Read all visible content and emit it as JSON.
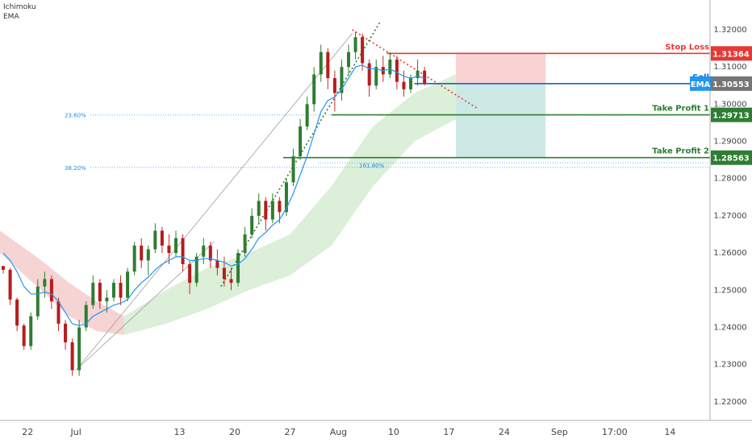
{
  "indicators": [
    "Ichimoku",
    "EMA"
  ],
  "chart_data": {
    "type": "candlestick",
    "title": "",
    "ylim": [
      1.215,
      1.328
    ],
    "y_ticks": [
      "1.32000",
      "1.31000",
      "1.30000",
      "1.29000",
      "1.28000",
      "1.27000",
      "1.26000",
      "1.25000",
      "1.24000",
      "1.23000",
      "1.22000"
    ],
    "y_tick_values": [
      1.32,
      1.31,
      1.3,
      1.29,
      1.28,
      1.27,
      1.26,
      1.25,
      1.24,
      1.23,
      1.22
    ],
    "x_ticks": [
      {
        "label": "22",
        "index": 4
      },
      {
        "label": "Jul",
        "index": 11
      },
      {
        "label": "13",
        "index": 26
      },
      {
        "label": "20",
        "index": 34
      },
      {
        "label": "27",
        "index": 42
      },
      {
        "label": "Aug",
        "index": 49
      },
      {
        "label": "10",
        "index": 57
      },
      {
        "label": "17",
        "index": 65
      },
      {
        "label": "24",
        "index": 73
      },
      {
        "label": "Sep",
        "index": 81
      },
      {
        "label": "17:00",
        "index": 89
      },
      {
        "label": "14",
        "index": 97
      }
    ],
    "candles": [
      [
        1.2565,
        1.2565,
        1.2545,
        1.2555
      ],
      [
        1.2555,
        1.256,
        1.246,
        1.2475
      ],
      [
        1.2475,
        1.248,
        1.239,
        1.2405
      ],
      [
        1.2405,
        1.241,
        1.234,
        1.235
      ],
      [
        1.235,
        1.244,
        1.234,
        1.243
      ],
      [
        1.243,
        1.253,
        1.242,
        1.251
      ],
      [
        1.251,
        1.255,
        1.248,
        1.253
      ],
      [
        1.253,
        1.254,
        1.245,
        1.247
      ],
      [
        1.247,
        1.248,
        1.239,
        1.241
      ],
      [
        1.241,
        1.242,
        1.234,
        1.236
      ],
      [
        1.236,
        1.237,
        1.227,
        1.2285
      ],
      [
        1.2285,
        1.242,
        1.227,
        1.24
      ],
      [
        1.24,
        1.247,
        1.239,
        1.246
      ],
      [
        1.246,
        1.254,
        1.245,
        1.252
      ],
      [
        1.252,
        1.253,
        1.245,
        1.247
      ],
      [
        1.247,
        1.25,
        1.244,
        1.248
      ],
      [
        1.248,
        1.253,
        1.247,
        1.252
      ],
      [
        1.252,
        1.254,
        1.246,
        1.248
      ],
      [
        1.248,
        1.256,
        1.247,
        1.255
      ],
      [
        1.255,
        1.263,
        1.254,
        1.262
      ],
      [
        1.262,
        1.264,
        1.256,
        1.258
      ],
      [
        1.258,
        1.262,
        1.254,
        1.261
      ],
      [
        1.261,
        1.268,
        1.26,
        1.266
      ],
      [
        1.266,
        1.267,
        1.26,
        1.262
      ],
      [
        1.262,
        1.265,
        1.257,
        1.26
      ],
      [
        1.26,
        1.266,
        1.259,
        1.264
      ],
      [
        1.264,
        1.265,
        1.255,
        1.257
      ],
      [
        1.257,
        1.258,
        1.249,
        1.252
      ],
      [
        1.252,
        1.26,
        1.251,
        1.259
      ],
      [
        1.259,
        1.264,
        1.257,
        1.262
      ],
      [
        1.262,
        1.263,
        1.256,
        1.258
      ],
      [
        1.258,
        1.261,
        1.254,
        1.256
      ],
      [
        1.256,
        1.259,
        1.251,
        1.253
      ],
      [
        1.253,
        1.256,
        1.25,
        1.252
      ],
      [
        1.252,
        1.261,
        1.251,
        1.26
      ],
      [
        1.26,
        1.267,
        1.259,
        1.265
      ],
      [
        1.265,
        1.272,
        1.264,
        1.27
      ],
      [
        1.27,
        1.276,
        1.268,
        1.274
      ],
      [
        1.274,
        1.275,
        1.266,
        1.269
      ],
      [
        1.269,
        1.276,
        1.268,
        1.274
      ],
      [
        1.274,
        1.275,
        1.268,
        1.271
      ],
      [
        1.271,
        1.28,
        1.27,
        1.279
      ],
      [
        1.279,
        1.288,
        1.278,
        1.286
      ],
      [
        1.286,
        1.296,
        1.285,
        1.294
      ],
      [
        1.294,
        1.302,
        1.293,
        1.3
      ],
      [
        1.3,
        1.31,
        1.298,
        1.308
      ],
      [
        1.308,
        1.316,
        1.306,
        1.314
      ],
      [
        1.314,
        1.315,
        1.304,
        1.307
      ],
      [
        1.307,
        1.309,
        1.298,
        1.303
      ],
      [
        1.303,
        1.312,
        1.301,
        1.31
      ],
      [
        1.31,
        1.316,
        1.308,
        1.314
      ],
      [
        1.314,
        1.3195,
        1.312,
        1.318
      ],
      [
        1.318,
        1.319,
        1.309,
        1.311
      ],
      [
        1.311,
        1.312,
        1.302,
        1.305
      ],
      [
        1.305,
        1.312,
        1.304,
        1.31
      ],
      [
        1.31,
        1.313,
        1.306,
        1.308
      ],
      [
        1.308,
        1.314,
        1.307,
        1.312
      ],
      [
        1.312,
        1.313,
        1.304,
        1.306
      ],
      [
        1.306,
        1.309,
        1.302,
        1.304
      ],
      [
        1.304,
        1.308,
        1.303,
        1.307
      ],
      [
        1.307,
        1.312,
        1.305,
        1.309
      ],
      [
        1.309,
        1.31,
        1.305,
        1.3055
      ]
    ],
    "ema": [
      1.26,
      1.258,
      1.255,
      1.251,
      1.249,
      1.249,
      1.2495,
      1.249,
      1.247,
      1.244,
      1.241,
      1.2405,
      1.241,
      1.243,
      1.244,
      1.245,
      1.246,
      1.2465,
      1.2475,
      1.25,
      1.252,
      1.2535,
      1.2555,
      1.257,
      1.258,
      1.259,
      1.259,
      1.258,
      1.258,
      1.2585,
      1.2585,
      1.258,
      1.2575,
      1.2565,
      1.257,
      1.2585,
      1.261,
      1.264,
      1.2655,
      1.2675,
      1.269,
      1.272,
      1.276,
      1.281,
      1.286,
      1.292,
      1.298,
      1.301,
      1.302,
      1.304,
      1.307,
      1.31,
      1.3105,
      1.3095,
      1.3095,
      1.309,
      1.3095,
      1.3085,
      1.3075,
      1.307,
      1.3075,
      1.307
    ],
    "cloud_segments": [
      {
        "color": "#f4cccc",
        "upper": [
          [
            0,
            1.266
          ],
          [
            6,
            1.258
          ],
          [
            10,
            1.252
          ],
          [
            14,
            1.247
          ],
          [
            18,
            1.243
          ]
        ],
        "lower": [
          [
            0,
            1.26
          ],
          [
            6,
            1.25
          ],
          [
            10,
            1.243
          ],
          [
            14,
            1.239
          ],
          [
            18,
            1.238
          ]
        ]
      },
      {
        "color": "#d6ecd2",
        "upper": [
          [
            18,
            1.243
          ],
          [
            24,
            1.25
          ],
          [
            30,
            1.256
          ],
          [
            36,
            1.26
          ],
          [
            42,
            1.265
          ],
          [
            48,
            1.278
          ],
          [
            54,
            1.294
          ],
          [
            60,
            1.303
          ],
          [
            66,
            1.308
          ]
        ],
        "lower": [
          [
            18,
            1.238
          ],
          [
            24,
            1.241
          ],
          [
            30,
            1.245
          ],
          [
            36,
            1.25
          ],
          [
            42,
            1.254
          ],
          [
            48,
            1.262
          ],
          [
            54,
            1.278
          ],
          [
            60,
            1.29
          ],
          [
            66,
            1.296
          ]
        ]
      }
    ],
    "channel_lines": [
      {
        "color": "#9e9e9e",
        "dash": "",
        "from": [
          11,
          1.2285
        ],
        "to": [
          51,
          1.319
        ]
      },
      {
        "color": "#9e9e9e",
        "dash": "",
        "from": [
          11,
          1.2285
        ],
        "to": [
          31,
          1.263
        ]
      },
      {
        "color": "#2e7d32",
        "dash": "2,3",
        "from": [
          32,
          1.251
        ],
        "to": [
          55,
          1.322
        ]
      },
      {
        "color": "#e53935",
        "dash": "2,3",
        "from": [
          51,
          1.32
        ],
        "to": [
          69,
          1.299
        ]
      }
    ],
    "levels": [
      {
        "name": "Stop Loss",
        "value": 1.31364,
        "label": "1.31364",
        "color": "#e53935",
        "from": 56,
        "to": 79
      },
      {
        "name": "Sell",
        "value": 1.30553,
        "label": "1.30553",
        "color": "#1565c0",
        "from": 60,
        "to": 95
      },
      {
        "name": "Take Profit 1",
        "value": 1.29713,
        "label": "1.29713",
        "color": "#2e7d32",
        "from": 48,
        "to": 95
      },
      {
        "name": "Take Profit 2",
        "value": 1.28563,
        "label": "1.28563",
        "color": "#2e7d32",
        "from": 41,
        "to": 95
      }
    ],
    "ema_tag": "EMA",
    "fib_levels": [
      {
        "label": "23.60%",
        "value": 1.2971
      },
      {
        "label": "38.20%",
        "value": 1.283
      }
    ],
    "fib_ext": {
      "label": "161.80%",
      "value": 1.2851
    },
    "risk_zone": {
      "top": 1.31364,
      "bottom": 1.30553,
      "from": 66,
      "to": 79,
      "color": "#f9d3d3"
    },
    "reward_zone": {
      "top": 1.30553,
      "bottom": 1.28563,
      "from": 66,
      "to": 79,
      "color": "#cde9e6"
    }
  }
}
